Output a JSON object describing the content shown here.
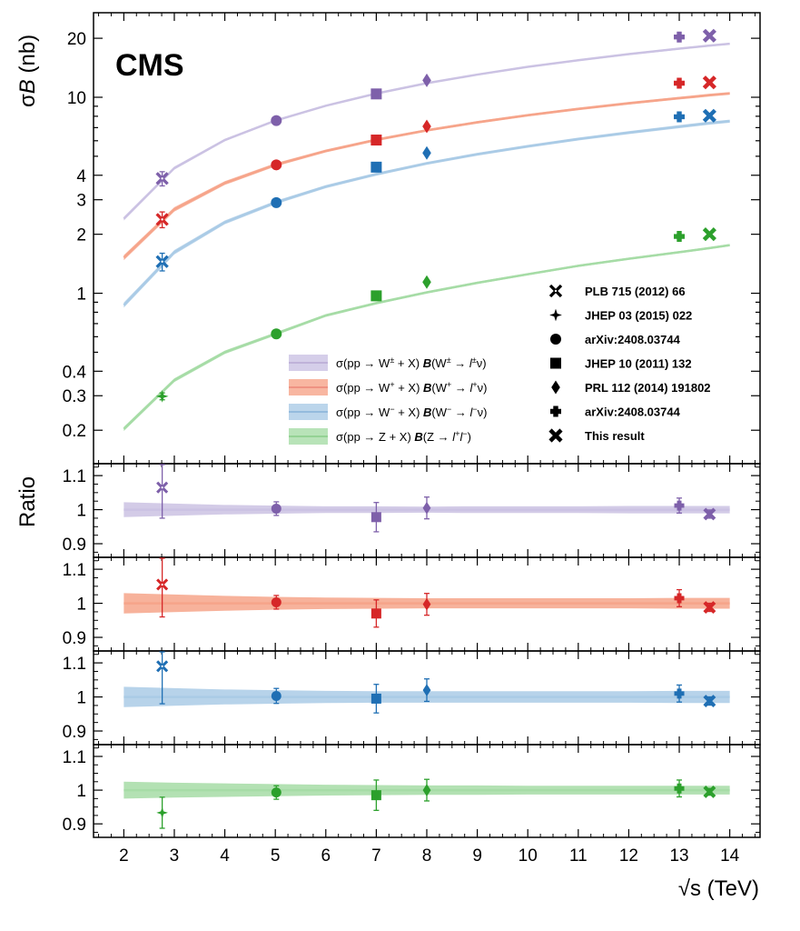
{
  "chart_data": {
    "type": "line",
    "experiment": "CMS",
    "xlabel": "√s (TeV)",
    "x_ticks": [
      2,
      3,
      4,
      5,
      6,
      7,
      8,
      9,
      10,
      11,
      12,
      13,
      14
    ],
    "xlim": [
      1.4,
      14.6
    ],
    "top_panel": {
      "ylabel": "σB (nb)",
      "ylabel_sigma": "σ",
      "ylabel_B": "B",
      "ylabel_unit": "(nb)",
      "scale": "log",
      "ylim": [
        0.135,
        27
      ],
      "y_ticks": [
        0.2,
        0.3,
        0.4,
        1,
        2,
        3,
        4,
        10,
        20
      ],
      "y_tick_labels": [
        "0.2",
        "0.3",
        "0.4",
        "1",
        "2",
        "3",
        "4",
        "10",
        "20"
      ]
    },
    "ratio_panels": {
      "ylabel": "Ratio",
      "ylim": [
        0.86,
        1.135
      ],
      "y_ticks": [
        0.9,
        1,
        1.1
      ],
      "y_tick_labels": [
        "0.9",
        "1",
        "1.1"
      ]
    },
    "series": [
      {
        "key": "wpm",
        "name_parts": {
          "a": "σ(pp → W",
          "b": "±",
          "c": " + X) ",
          "d": "B",
          "e": "(W",
          "f": "±",
          "g": " → ",
          "h": "l",
          "i": "±",
          "j": "ν)"
        },
        "color": "#7e60aa",
        "band_color": "#cbc2e3",
        "curve": {
          "x": [
            2,
            3,
            4,
            5,
            6,
            7,
            8,
            9,
            10,
            11,
            12,
            13,
            13.6,
            14
          ],
          "y": [
            2.4,
            4.35,
            6.05,
            7.6,
            9.05,
            10.45,
            11.8,
            13.05,
            14.3,
            15.45,
            16.6,
            17.7,
            18.35,
            18.75
          ]
        },
        "band_rel_err": [
          0.022,
          0.018,
          0.014,
          0.012,
          0.01,
          0.01,
          0.009,
          0.01,
          0.01,
          0.01,
          0.011,
          0.011,
          0.011,
          0.011
        ],
        "points": [
          {
            "x": 2.76,
            "y": 3.85,
            "ratio": 1.065,
            "ratio_err": 0.09,
            "y_err": 0.32,
            "marker": "xcross"
          },
          {
            "x": 5.02,
            "y": 7.6,
            "ratio": 1.003,
            "ratio_err": 0.02,
            "y_err": 0.15,
            "marker": "circle"
          },
          {
            "x": 7,
            "y": 10.4,
            "ratio": 0.978,
            "ratio_err": 0.043,
            "y_err": 0.3,
            "marker": "square"
          },
          {
            "x": 8,
            "y": 12.2,
            "ratio": 1.005,
            "ratio_err": 0.032,
            "y_err": 0.35,
            "marker": "diamond"
          },
          {
            "x": 13,
            "y": 20.3,
            "ratio": 1.012,
            "ratio_err": 0.022,
            "y_err": 0.45,
            "marker": "plus"
          },
          {
            "x": 13.6,
            "y": 20.6,
            "ratio": 0.987,
            "ratio_err": 0.012,
            "y_err": 0.3,
            "marker": "x"
          }
        ]
      },
      {
        "key": "wp",
        "name_parts": {
          "a": "σ(pp → W",
          "b": "+",
          "c": " + X) ",
          "d": "B",
          "e": "(W",
          "f": "+",
          "g": " → ",
          "h": "l",
          "i": "+",
          "j": "ν)"
        },
        "color": "#d62728",
        "band_color": "#f6a48a",
        "curve": {
          "x": [
            2,
            3,
            4,
            5,
            6,
            7,
            8,
            9,
            10,
            11,
            12,
            13,
            13.6,
            14
          ],
          "y": [
            1.52,
            2.68,
            3.65,
            4.52,
            5.32,
            6.07,
            6.78,
            7.45,
            8.1,
            8.72,
            9.32,
            9.9,
            10.25,
            10.47
          ]
        },
        "band_rel_err": [
          0.03,
          0.026,
          0.022,
          0.019,
          0.017,
          0.016,
          0.015,
          0.015,
          0.015,
          0.015,
          0.015,
          0.016,
          0.016,
          0.016
        ],
        "points": [
          {
            "x": 2.76,
            "y": 2.38,
            "ratio": 1.055,
            "ratio_err": 0.095,
            "y_err": 0.22,
            "marker": "xcross"
          },
          {
            "x": 5.02,
            "y": 4.52,
            "ratio": 1.003,
            "ratio_err": 0.02,
            "y_err": 0.09,
            "marker": "circle"
          },
          {
            "x": 7,
            "y": 6.05,
            "ratio": 0.97,
            "ratio_err": 0.04,
            "y_err": 0.18,
            "marker": "square"
          },
          {
            "x": 8,
            "y": 7.1,
            "ratio": 0.997,
            "ratio_err": 0.032,
            "y_err": 0.2,
            "marker": "diamond"
          },
          {
            "x": 13,
            "y": 11.8,
            "ratio": 1.015,
            "ratio_err": 0.025,
            "y_err": 0.3,
            "marker": "plus"
          },
          {
            "x": 13.6,
            "y": 11.9,
            "ratio": 0.988,
            "ratio_err": 0.012,
            "y_err": 0.2,
            "marker": "x"
          }
        ]
      },
      {
        "key": "wm",
        "name_parts": {
          "a": "σ(pp → W",
          "b": "−",
          "c": " + X) ",
          "d": "B",
          "e": "(W",
          "f": "−",
          "g": " → ",
          "h": "l",
          "i": "−",
          "j": "ν)"
        },
        "color": "#1f6fb4",
        "band_color": "#aacbe6",
        "curve": {
          "x": [
            2,
            3,
            4,
            5,
            6,
            7,
            8,
            9,
            10,
            11,
            12,
            13,
            13.6,
            14
          ],
          "y": [
            0.87,
            1.62,
            2.3,
            2.9,
            3.5,
            4.05,
            4.6,
            5.12,
            5.62,
            6.12,
            6.6,
            7.08,
            7.38,
            7.55
          ]
        },
        "band_rel_err": [
          0.03,
          0.026,
          0.022,
          0.02,
          0.018,
          0.017,
          0.017,
          0.017,
          0.017,
          0.017,
          0.017,
          0.018,
          0.018,
          0.018
        ],
        "points": [
          {
            "x": 2.76,
            "y": 1.45,
            "ratio": 1.09,
            "ratio_err": 0.11,
            "y_err": 0.15,
            "marker": "xcross"
          },
          {
            "x": 5.02,
            "y": 2.9,
            "ratio": 1.003,
            "ratio_err": 0.022,
            "y_err": 0.06,
            "marker": "circle"
          },
          {
            "x": 7,
            "y": 4.4,
            "ratio": 0.995,
            "ratio_err": 0.042,
            "y_err": 0.13,
            "marker": "square"
          },
          {
            "x": 8,
            "y": 5.2,
            "ratio": 1.02,
            "ratio_err": 0.033,
            "y_err": 0.15,
            "marker": "diamond"
          },
          {
            "x": 13,
            "y": 7.95,
            "ratio": 1.01,
            "ratio_err": 0.025,
            "y_err": 0.2,
            "marker": "plus"
          },
          {
            "x": 13.6,
            "y": 8.05,
            "ratio": 0.988,
            "ratio_err": 0.012,
            "y_err": 0.15,
            "marker": "x"
          }
        ]
      },
      {
        "key": "z",
        "name_parts": {
          "a": "σ(pp → Z + X) ",
          "b": "",
          "c": "",
          "d": "B",
          "e": "(Z → ",
          "f": "",
          "g": "",
          "h": "l",
          "i": "+",
          "j": "",
          "k": "l",
          "m": "−",
          "n": ")"
        },
        "color": "#2ca02c",
        "band_color": "#a6dca6",
        "curve": {
          "x": [
            2,
            3,
            4,
            5,
            6,
            7,
            8,
            9,
            10,
            11,
            12,
            13,
            13.6,
            14
          ],
          "y": [
            0.203,
            0.36,
            0.5,
            0.62,
            0.77,
            0.89,
            1.01,
            1.13,
            1.25,
            1.38,
            1.5,
            1.62,
            1.7,
            1.76
          ]
        },
        "band_rel_err": [
          0.025,
          0.022,
          0.02,
          0.018,
          0.016,
          0.015,
          0.014,
          0.014,
          0.013,
          0.013,
          0.013,
          0.013,
          0.013,
          0.013
        ],
        "points": [
          {
            "x": 2.76,
            "y": 0.298,
            "ratio": 0.933,
            "ratio_err": 0.046,
            "y_err": 0.012,
            "marker": "star4"
          },
          {
            "x": 5.02,
            "y": 0.62,
            "ratio": 0.993,
            "ratio_err": 0.02,
            "y_err": 0.015,
            "marker": "circle"
          },
          {
            "x": 7,
            "y": 0.97,
            "ratio": 0.985,
            "ratio_err": 0.045,
            "y_err": 0.03,
            "marker": "square"
          },
          {
            "x": 8,
            "y": 1.14,
            "ratio": 1.0,
            "ratio_err": 0.032,
            "y_err": 0.035,
            "marker": "diamond"
          },
          {
            "x": 13,
            "y": 1.95,
            "ratio": 1.005,
            "ratio_err": 0.025,
            "y_err": 0.05,
            "marker": "plus"
          },
          {
            "x": 13.6,
            "y": 2.0,
            "ratio": 0.995,
            "ratio_err": 0.01,
            "y_err": 0.04,
            "marker": "x"
          }
        ]
      }
    ],
    "marker_legend": [
      {
        "marker": "xcross",
        "label": "PLB 715 (2012) 66"
      },
      {
        "marker": "star4",
        "label": "JHEP 03 (2015) 022"
      },
      {
        "marker": "circle",
        "label": "arXiv:2408.03744"
      },
      {
        "marker": "square",
        "label": "JHEP 10 (2011) 132"
      },
      {
        "marker": "diamond",
        "label": "PRL 112 (2014) 191802"
      },
      {
        "marker": "plus",
        "label": "arXiv:2408.03744"
      },
      {
        "marker": "x",
        "label": "This result"
      }
    ]
  }
}
